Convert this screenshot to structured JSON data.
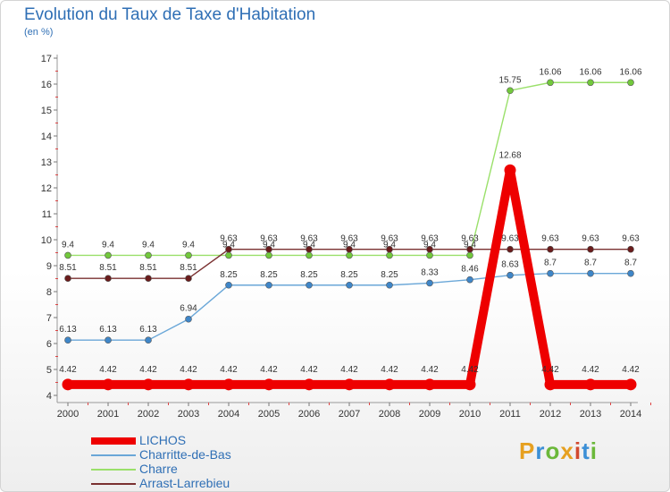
{
  "header": {
    "title": "Evolution du Taux de Taxe d'Habitation",
    "subtitle": "(en %)"
  },
  "logo": {
    "text": "Proxiti",
    "letter_colors": [
      "#e6a020",
      "#3b8fd6",
      "#6bb83a",
      "#e6a020",
      "#d24a30",
      "#3b8fd6",
      "#6bb83a"
    ]
  },
  "chart_data": {
    "type": "line",
    "title": "Evolution du Taux de Taxe d'Habitation",
    "ylabel": "(en %)",
    "x": [
      "2000",
      "2001",
      "2002",
      "2003",
      "2004",
      "2005",
      "2006",
      "2007",
      "2008",
      "2009",
      "2010",
      "2011",
      "2012",
      "2013",
      "2014"
    ],
    "ylim": [
      4,
      17
    ],
    "yticks": [
      "4",
      "5",
      "6",
      "7",
      "8",
      "9",
      "10",
      "11",
      "12",
      "13",
      "14",
      "15",
      "16",
      "17"
    ],
    "grid": false,
    "legend_position": "bottom-left",
    "series": [
      {
        "name": "LICHOS",
        "color": "#ee0000",
        "marker": "#ee0000",
        "values": [
          4.42,
          4.42,
          4.42,
          4.42,
          4.42,
          4.42,
          4.42,
          4.42,
          4.42,
          4.42,
          4.42,
          12.68,
          4.42,
          4.42,
          4.42
        ],
        "labels": [
          "4.42",
          "4.42",
          "4.42",
          "4.42",
          "4.42",
          "4.42",
          "4.42",
          "4.42",
          "4.42",
          "4.42",
          "4.42",
          "12.68",
          "4.42",
          "4.42",
          "4.42"
        ]
      },
      {
        "name": "Charritte-de-Bas",
        "color": "#6aa7d8",
        "marker": "#3f86c8",
        "values": [
          6.13,
          6.13,
          6.13,
          6.94,
          8.25,
          8.25,
          8.25,
          8.25,
          8.25,
          8.33,
          8.46,
          8.63,
          8.7,
          8.7,
          8.7
        ],
        "labels": [
          "6.13",
          "6.13",
          "6.13",
          "6.94",
          "8.25",
          "8.25",
          "8.25",
          "8.25",
          "8.25",
          "8.33",
          "8.46",
          "8.63",
          "8.7",
          "8.7",
          "8.7"
        ]
      },
      {
        "name": "Charre",
        "color": "#9ae06a",
        "marker": "#72c83c",
        "values": [
          9.4,
          9.4,
          9.4,
          9.4,
          9.4,
          9.4,
          9.4,
          9.4,
          9.4,
          9.4,
          9.4,
          15.75,
          16.06,
          16.06,
          16.06
        ],
        "labels": [
          "9.4",
          "9.4",
          "9.4",
          "9.4",
          "9.4",
          "9.4",
          "9.4",
          "9.4",
          "9.4",
          "9.4",
          "9.4",
          "15.75",
          "16.06",
          "16.06",
          "16.06"
        ]
      },
      {
        "name": "Arrast-Larrebieu",
        "color": "#7a3030",
        "marker": "#6a1c1c",
        "values": [
          8.51,
          8.51,
          8.51,
          8.51,
          9.63,
          9.63,
          9.63,
          9.63,
          9.63,
          9.63,
          9.63,
          9.63,
          9.63,
          9.63,
          9.63
        ],
        "labels": [
          "8.51",
          "8.51",
          "8.51",
          "8.51",
          "9.63",
          "9.63",
          "9.63",
          "9.63",
          "9.63",
          "9.63",
          "9.63",
          "9.63",
          "9.63",
          "9.63",
          "9.63"
        ]
      }
    ]
  }
}
